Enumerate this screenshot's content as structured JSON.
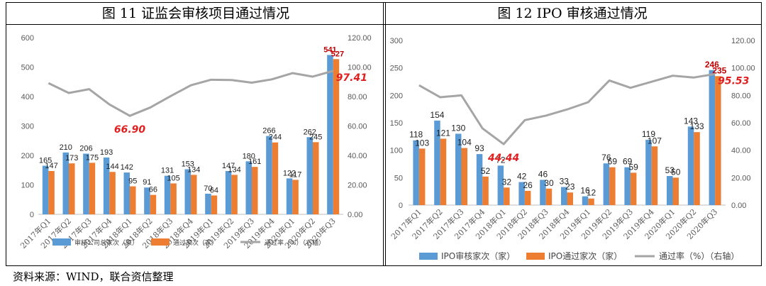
{
  "source_note": "资料来源：WIND，联合资信整理",
  "chart_data": [
    {
      "type": "bar",
      "title": "图 11   证监会审核项目通过情况",
      "categories": [
        "2017年Q1",
        "2017年Q2",
        "2017年Q3",
        "2017年Q4",
        "2018年Q1",
        "2018年Q2",
        "2018年Q3",
        "2018年Q4",
        "2019年Q1",
        "2019年Q2",
        "2019年Q3",
        "2019年Q4",
        "2020年Q1",
        "2020年Q2",
        "2020年Q3"
      ],
      "series": [
        {
          "name": "审核公司总家次（家）",
          "type": "bar",
          "axis": "left",
          "color": "#5B9BD5",
          "values": [
            165,
            210,
            206,
            193,
            142,
            91,
            131,
            153,
            70,
            147,
            180,
            266,
            122,
            262,
            541
          ]
        },
        {
          "name": "通过家次（家）",
          "type": "bar",
          "axis": "left",
          "color": "#ED7D31",
          "values": [
            147,
            173,
            175,
            144,
            95,
            66,
            105,
            134,
            64,
            134,
            161,
            244,
            117,
            245,
            527
          ]
        },
        {
          "name": "通过率（%）（右轴）",
          "type": "line",
          "axis": "right",
          "color": "#A5A5A5",
          "values": [
            89.1,
            82.4,
            85.0,
            74.6,
            66.9,
            72.5,
            80.2,
            87.6,
            91.4,
            91.2,
            89.4,
            91.7,
            95.9,
            93.5,
            97.41
          ]
        }
      ],
      "highlight_labels": [
        "66.90",
        "97.41"
      ],
      "left_axis": {
        "min": 0,
        "max": 600,
        "ticks": [
          "0",
          "100",
          "200",
          "300",
          "400",
          "500",
          "600"
        ]
      },
      "right_axis": {
        "min": 0,
        "max": 120,
        "ticks": [
          "0.00",
          "20.00",
          "40.00",
          "60.00",
          "80.00",
          "100.00",
          "120.00"
        ]
      },
      "grid": false,
      "legend_position": "bottom"
    },
    {
      "type": "bar",
      "title": "图 12   IPO 审核通过情况",
      "categories": [
        "2017年Q1",
        "2017年Q2",
        "2017年Q3",
        "2017年Q4",
        "2018年Q1",
        "2018年Q2",
        "2018年Q3",
        "2018年Q4",
        "2019年Q1",
        "2019年Q2",
        "2019年Q3",
        "2019年Q4",
        "2020年Q1",
        "2020年Q2",
        "2020年Q3"
      ],
      "series": [
        {
          "name": "IPO审核家次（家）",
          "type": "bar",
          "axis": "left",
          "color": "#5B9BD5",
          "values": [
            118,
            154,
            130,
            93,
            72,
            42,
            46,
            33,
            16,
            76,
            69,
            119,
            53,
            143,
            246
          ]
        },
        {
          "name": "IPO通过家次（家）",
          "type": "bar",
          "axis": "left",
          "color": "#ED7D31",
          "values": [
            103,
            121,
            104,
            52,
            32,
            26,
            30,
            23,
            12,
            69,
            59,
            107,
            50,
            133,
            235
          ]
        },
        {
          "name": "通过率（%）（右轴）",
          "type": "line",
          "axis": "right",
          "color": "#A5A5A5",
          "values": [
            87.3,
            78.6,
            80.0,
            55.9,
            44.44,
            61.9,
            65.2,
            69.7,
            75.0,
            90.8,
            85.5,
            89.9,
            94.3,
            93.0,
            95.53
          ]
        }
      ],
      "highlight_labels": [
        "44.44",
        "95.53"
      ],
      "left_axis": {
        "min": 0,
        "max": 300,
        "ticks": [
          "0",
          "50",
          "100",
          "150",
          "200",
          "250",
          "300"
        ]
      },
      "right_axis": {
        "min": 0,
        "max": 120,
        "ticks": [
          "0.00",
          "20.00",
          "40.00",
          "60.00",
          "80.00",
          "100.00",
          "120.00"
        ]
      },
      "grid": false,
      "legend_position": "bottom"
    }
  ],
  "colors": {
    "bar_total": "#5B9BD5",
    "bar_pass": "#ED7D31",
    "rate_line": "#A5A5A5",
    "highlight": "#E02020",
    "axis_text": "#595959"
  }
}
